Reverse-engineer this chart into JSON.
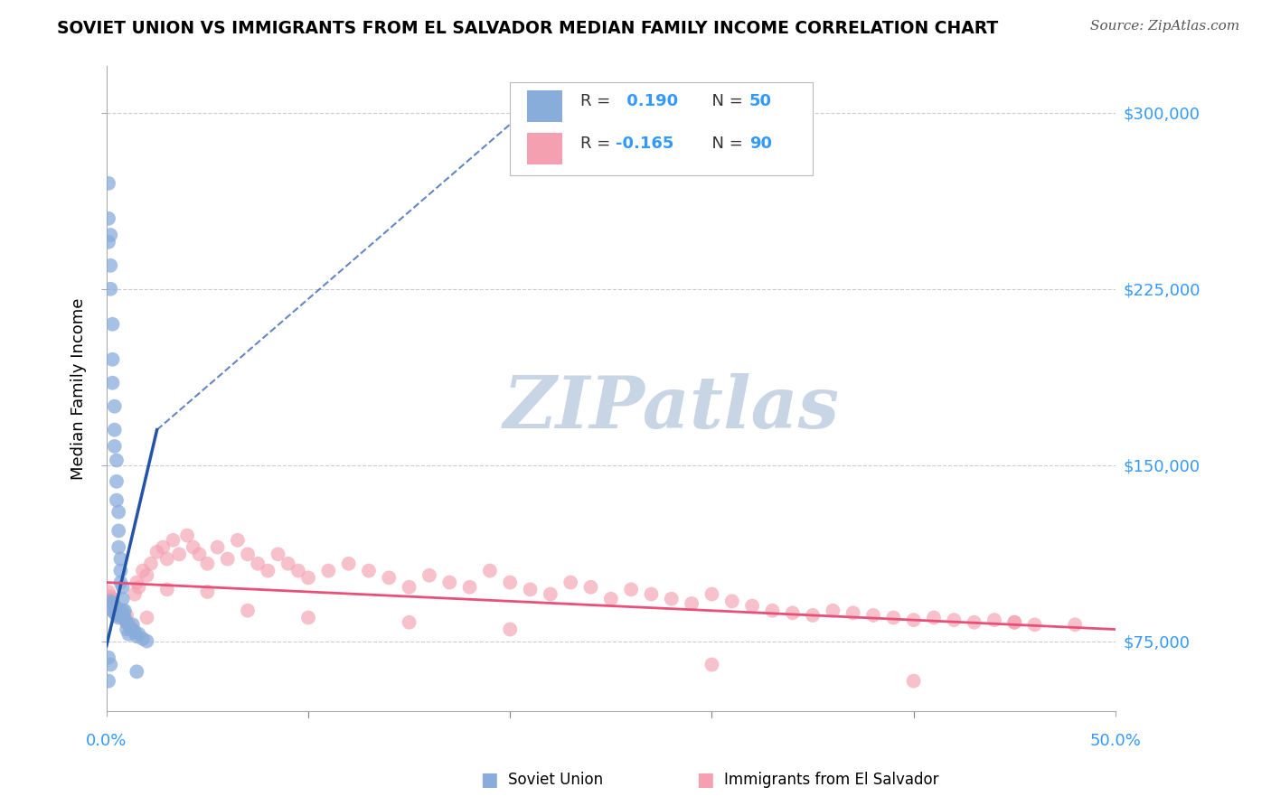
{
  "title": "SOVIET UNION VS IMMIGRANTS FROM EL SALVADOR MEDIAN FAMILY INCOME CORRELATION CHART",
  "source": "Source: ZipAtlas.com",
  "ylabel": "Median Family Income",
  "y_tick_labels": [
    "$75,000",
    "$150,000",
    "$225,000",
    "$300,000"
  ],
  "y_tick_values": [
    75000,
    150000,
    225000,
    300000
  ],
  "xlim": [
    0.0,
    0.5
  ],
  "ylim": [
    45000,
    320000
  ],
  "r_blue": 0.19,
  "n_blue": 50,
  "r_pink": -0.165,
  "n_pink": 90,
  "blue_color": "#89ADDB",
  "pink_color": "#F4A0B0",
  "trend_blue_color": "#2255AA",
  "trend_pink_color": "#E8507A",
  "watermark": "ZIPatlas",
  "watermark_zip_color": "#C8D5E5",
  "watermark_atlas_color": "#C8D5E5",
  "legend_r_color": "#3399FF",
  "legend_n_color": "#3399FF",
  "legend_text_color": "#333333",
  "background_color": "#FFFFFF",
  "blue_scatter_x": [
    0.001,
    0.001,
    0.001,
    0.002,
    0.002,
    0.002,
    0.003,
    0.003,
    0.003,
    0.004,
    0.004,
    0.004,
    0.005,
    0.005,
    0.005,
    0.006,
    0.006,
    0.006,
    0.007,
    0.007,
    0.007,
    0.008,
    0.008,
    0.008,
    0.009,
    0.009,
    0.01,
    0.01,
    0.011,
    0.012,
    0.013,
    0.014,
    0.015,
    0.016,
    0.018,
    0.02,
    0.003,
    0.004,
    0.005,
    0.006,
    0.002,
    0.003,
    0.004,
    0.005,
    0.006,
    0.007,
    0.001,
    0.002,
    0.015,
    0.001
  ],
  "blue_scatter_y": [
    270000,
    255000,
    245000,
    248000,
    235000,
    225000,
    210000,
    195000,
    185000,
    175000,
    165000,
    158000,
    152000,
    143000,
    135000,
    130000,
    122000,
    115000,
    110000,
    105000,
    100000,
    98000,
    93000,
    88000,
    88000,
    85000,
    83000,
    80000,
    78000,
    80000,
    82000,
    79000,
    77000,
    78000,
    76000,
    75000,
    88000,
    87000,
    86000,
    85000,
    92000,
    91000,
    90000,
    89000,
    88000,
    87000,
    68000,
    65000,
    62000,
    58000
  ],
  "pink_scatter_x": [
    0.001,
    0.002,
    0.003,
    0.003,
    0.004,
    0.005,
    0.005,
    0.006,
    0.007,
    0.008,
    0.009,
    0.01,
    0.011,
    0.012,
    0.013,
    0.014,
    0.015,
    0.016,
    0.018,
    0.02,
    0.022,
    0.025,
    0.028,
    0.03,
    0.033,
    0.036,
    0.04,
    0.043,
    0.046,
    0.05,
    0.055,
    0.06,
    0.065,
    0.07,
    0.075,
    0.08,
    0.085,
    0.09,
    0.095,
    0.1,
    0.11,
    0.12,
    0.13,
    0.14,
    0.15,
    0.16,
    0.17,
    0.18,
    0.19,
    0.2,
    0.21,
    0.22,
    0.23,
    0.24,
    0.25,
    0.26,
    0.27,
    0.28,
    0.29,
    0.3,
    0.31,
    0.32,
    0.33,
    0.34,
    0.35,
    0.36,
    0.37,
    0.38,
    0.39,
    0.4,
    0.41,
    0.42,
    0.43,
    0.44,
    0.45,
    0.46,
    0.003,
    0.006,
    0.01,
    0.02,
    0.03,
    0.05,
    0.07,
    0.1,
    0.15,
    0.2,
    0.3,
    0.4,
    0.45,
    0.48
  ],
  "pink_scatter_y": [
    96000,
    94000,
    93000,
    91000,
    90000,
    89000,
    88000,
    87000,
    86000,
    85000,
    84000,
    83000,
    82000,
    81000,
    80000,
    95000,
    100000,
    98000,
    105000,
    103000,
    108000,
    113000,
    115000,
    110000,
    118000,
    112000,
    120000,
    115000,
    112000,
    108000,
    115000,
    110000,
    118000,
    112000,
    108000,
    105000,
    112000,
    108000,
    105000,
    102000,
    105000,
    108000,
    105000,
    102000,
    98000,
    103000,
    100000,
    98000,
    105000,
    100000,
    97000,
    95000,
    100000,
    98000,
    93000,
    97000,
    95000,
    93000,
    91000,
    95000,
    92000,
    90000,
    88000,
    87000,
    86000,
    88000,
    87000,
    86000,
    85000,
    84000,
    85000,
    84000,
    83000,
    84000,
    83000,
    82000,
    88000,
    87000,
    86000,
    85000,
    97000,
    96000,
    88000,
    85000,
    83000,
    80000,
    65000,
    58000,
    83000,
    82000
  ],
  "blue_trend_x0": 0.0,
  "blue_trend_x1": 0.025,
  "blue_trend_y0": 73000,
  "blue_trend_y1": 165000,
  "blue_trend_dashed_x1": 0.22,
  "blue_trend_dashed_y1": 310000,
  "pink_trend_x0": 0.0,
  "pink_trend_x1": 0.5,
  "pink_trend_y0": 100000,
  "pink_trend_y1": 80000
}
